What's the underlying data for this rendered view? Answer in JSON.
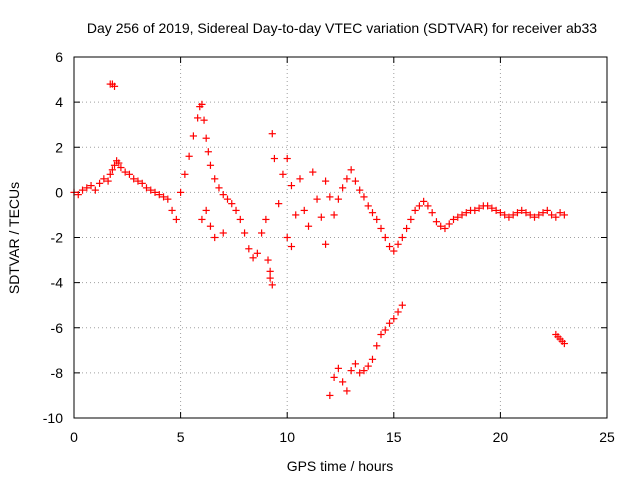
{
  "chart_data": {
    "type": "scatter",
    "title": "Day 256 of 2019, Sidereal Day-to-day VTEC variation (SDTVAR) for receiver ab33",
    "xlabel": "GPS time / hours",
    "ylabel": "SDTVAR / TECUs",
    "xlim": [
      0,
      25
    ],
    "ylim": [
      -10,
      6
    ],
    "xticks": [
      0,
      5,
      10,
      15,
      20,
      25
    ],
    "yticks": [
      6,
      4,
      2,
      0,
      -2,
      -4,
      -6,
      -8,
      -10
    ],
    "grid": true,
    "marker": "plus",
    "series": [
      {
        "name": "SDTVAR",
        "color": "#ff0000",
        "x": [
          0.0,
          0.2,
          0.4,
          0.6,
          0.8,
          1.0,
          1.2,
          1.4,
          1.6,
          1.7,
          1.8,
          1.9,
          2.0,
          2.1,
          2.2,
          2.4,
          2.6,
          2.8,
          3.0,
          3.2,
          3.4,
          3.6,
          3.8,
          4.0,
          4.2,
          4.4,
          4.6,
          4.8,
          5.0,
          5.2,
          5.4,
          5.6,
          5.8,
          5.9,
          6.0,
          6.1,
          6.2,
          6.3,
          6.4,
          6.6,
          6.8,
          7.0,
          7.2,
          7.4,
          7.6,
          7.8,
          8.0,
          8.2,
          8.4,
          8.6,
          8.8,
          9.0,
          9.1,
          9.2,
          9.3,
          9.4,
          9.6,
          9.8,
          10.0,
          10.2,
          10.4,
          10.6,
          10.8,
          11.0,
          11.2,
          11.4,
          11.6,
          11.8,
          12.0,
          12.2,
          12.4,
          12.6,
          12.8,
          13.0,
          13.2,
          13.4,
          13.6,
          13.8,
          14.0,
          14.2,
          14.4,
          14.6,
          14.8,
          15.0,
          15.2,
          15.4,
          15.6,
          15.8,
          16.0,
          16.2,
          16.4,
          16.6,
          16.8,
          17.0,
          17.2,
          17.4,
          17.6,
          17.8,
          18.0,
          18.2,
          18.4,
          18.6,
          18.8,
          19.0,
          19.2,
          19.4,
          19.6,
          19.8,
          20.0,
          20.2,
          20.4,
          20.6,
          20.8,
          21.0,
          21.2,
          21.4,
          21.6,
          21.8,
          22.0,
          22.2,
          22.4,
          22.6,
          22.8,
          23.0,
          1.7,
          1.8,
          1.9,
          6.0,
          6.2,
          6.4,
          6.6,
          7.0,
          9.2,
          9.3,
          10.0,
          10.2,
          11.8,
          12.0,
          12.2,
          12.4,
          12.6,
          12.8,
          13.0,
          13.2,
          13.4,
          13.6,
          13.8,
          14.0,
          14.2,
          14.4,
          14.6,
          14.8,
          15.0,
          15.2,
          15.4,
          22.6,
          22.7,
          22.8,
          22.9,
          23.0
        ],
        "y": [
          0.0,
          -0.1,
          0.1,
          0.2,
          0.3,
          0.1,
          0.4,
          0.6,
          0.5,
          0.8,
          1.0,
          1.2,
          1.4,
          1.3,
          1.1,
          0.9,
          0.8,
          0.6,
          0.5,
          0.4,
          0.2,
          0.1,
          0.0,
          -0.1,
          -0.2,
          -0.3,
          -0.8,
          -1.2,
          0.0,
          0.8,
          1.6,
          2.5,
          3.3,
          3.8,
          3.9,
          3.2,
          2.4,
          1.8,
          1.2,
          0.6,
          0.2,
          -0.1,
          -0.3,
          -0.5,
          -0.8,
          -1.2,
          -1.8,
          -2.5,
          -2.9,
          -2.7,
          -1.8,
          -1.2,
          -3.0,
          -3.8,
          2.6,
          1.5,
          -0.5,
          0.8,
          1.5,
          0.3,
          -1.0,
          0.6,
          -0.8,
          -1.5,
          0.9,
          -0.3,
          -1.1,
          0.5,
          -0.2,
          -1.0,
          -0.3,
          0.2,
          0.6,
          1.0,
          0.5,
          0.1,
          -0.2,
          -0.6,
          -0.9,
          -1.2,
          -1.6,
          -2.0,
          -2.4,
          -2.6,
          -2.3,
          -2.0,
          -1.6,
          -1.2,
          -0.8,
          -0.6,
          -0.4,
          -0.6,
          -0.9,
          -1.3,
          -1.5,
          -1.6,
          -1.4,
          -1.2,
          -1.1,
          -1.0,
          -0.9,
          -0.8,
          -0.8,
          -0.7,
          -0.6,
          -0.6,
          -0.7,
          -0.8,
          -0.9,
          -1.0,
          -1.1,
          -1.0,
          -0.9,
          -0.8,
          -0.9,
          -1.0,
          -1.1,
          -1.0,
          -0.9,
          -0.8,
          -1.0,
          -1.1,
          -0.9,
          -1.0,
          4.8,
          4.8,
          4.7,
          -1.2,
          -0.8,
          -1.5,
          -2.0,
          -1.8,
          -3.5,
          -4.1,
          -2.0,
          -2.4,
          -2.3,
          -9.0,
          -8.2,
          -7.8,
          -8.4,
          -8.8,
          -7.9,
          -7.6,
          -8.0,
          -7.9,
          -7.7,
          -7.4,
          -6.8,
          -6.3,
          -6.1,
          -5.8,
          -5.6,
          -5.3,
          -5.0,
          -6.3,
          -6.4,
          -6.5,
          -6.6,
          -6.7
        ]
      }
    ]
  }
}
